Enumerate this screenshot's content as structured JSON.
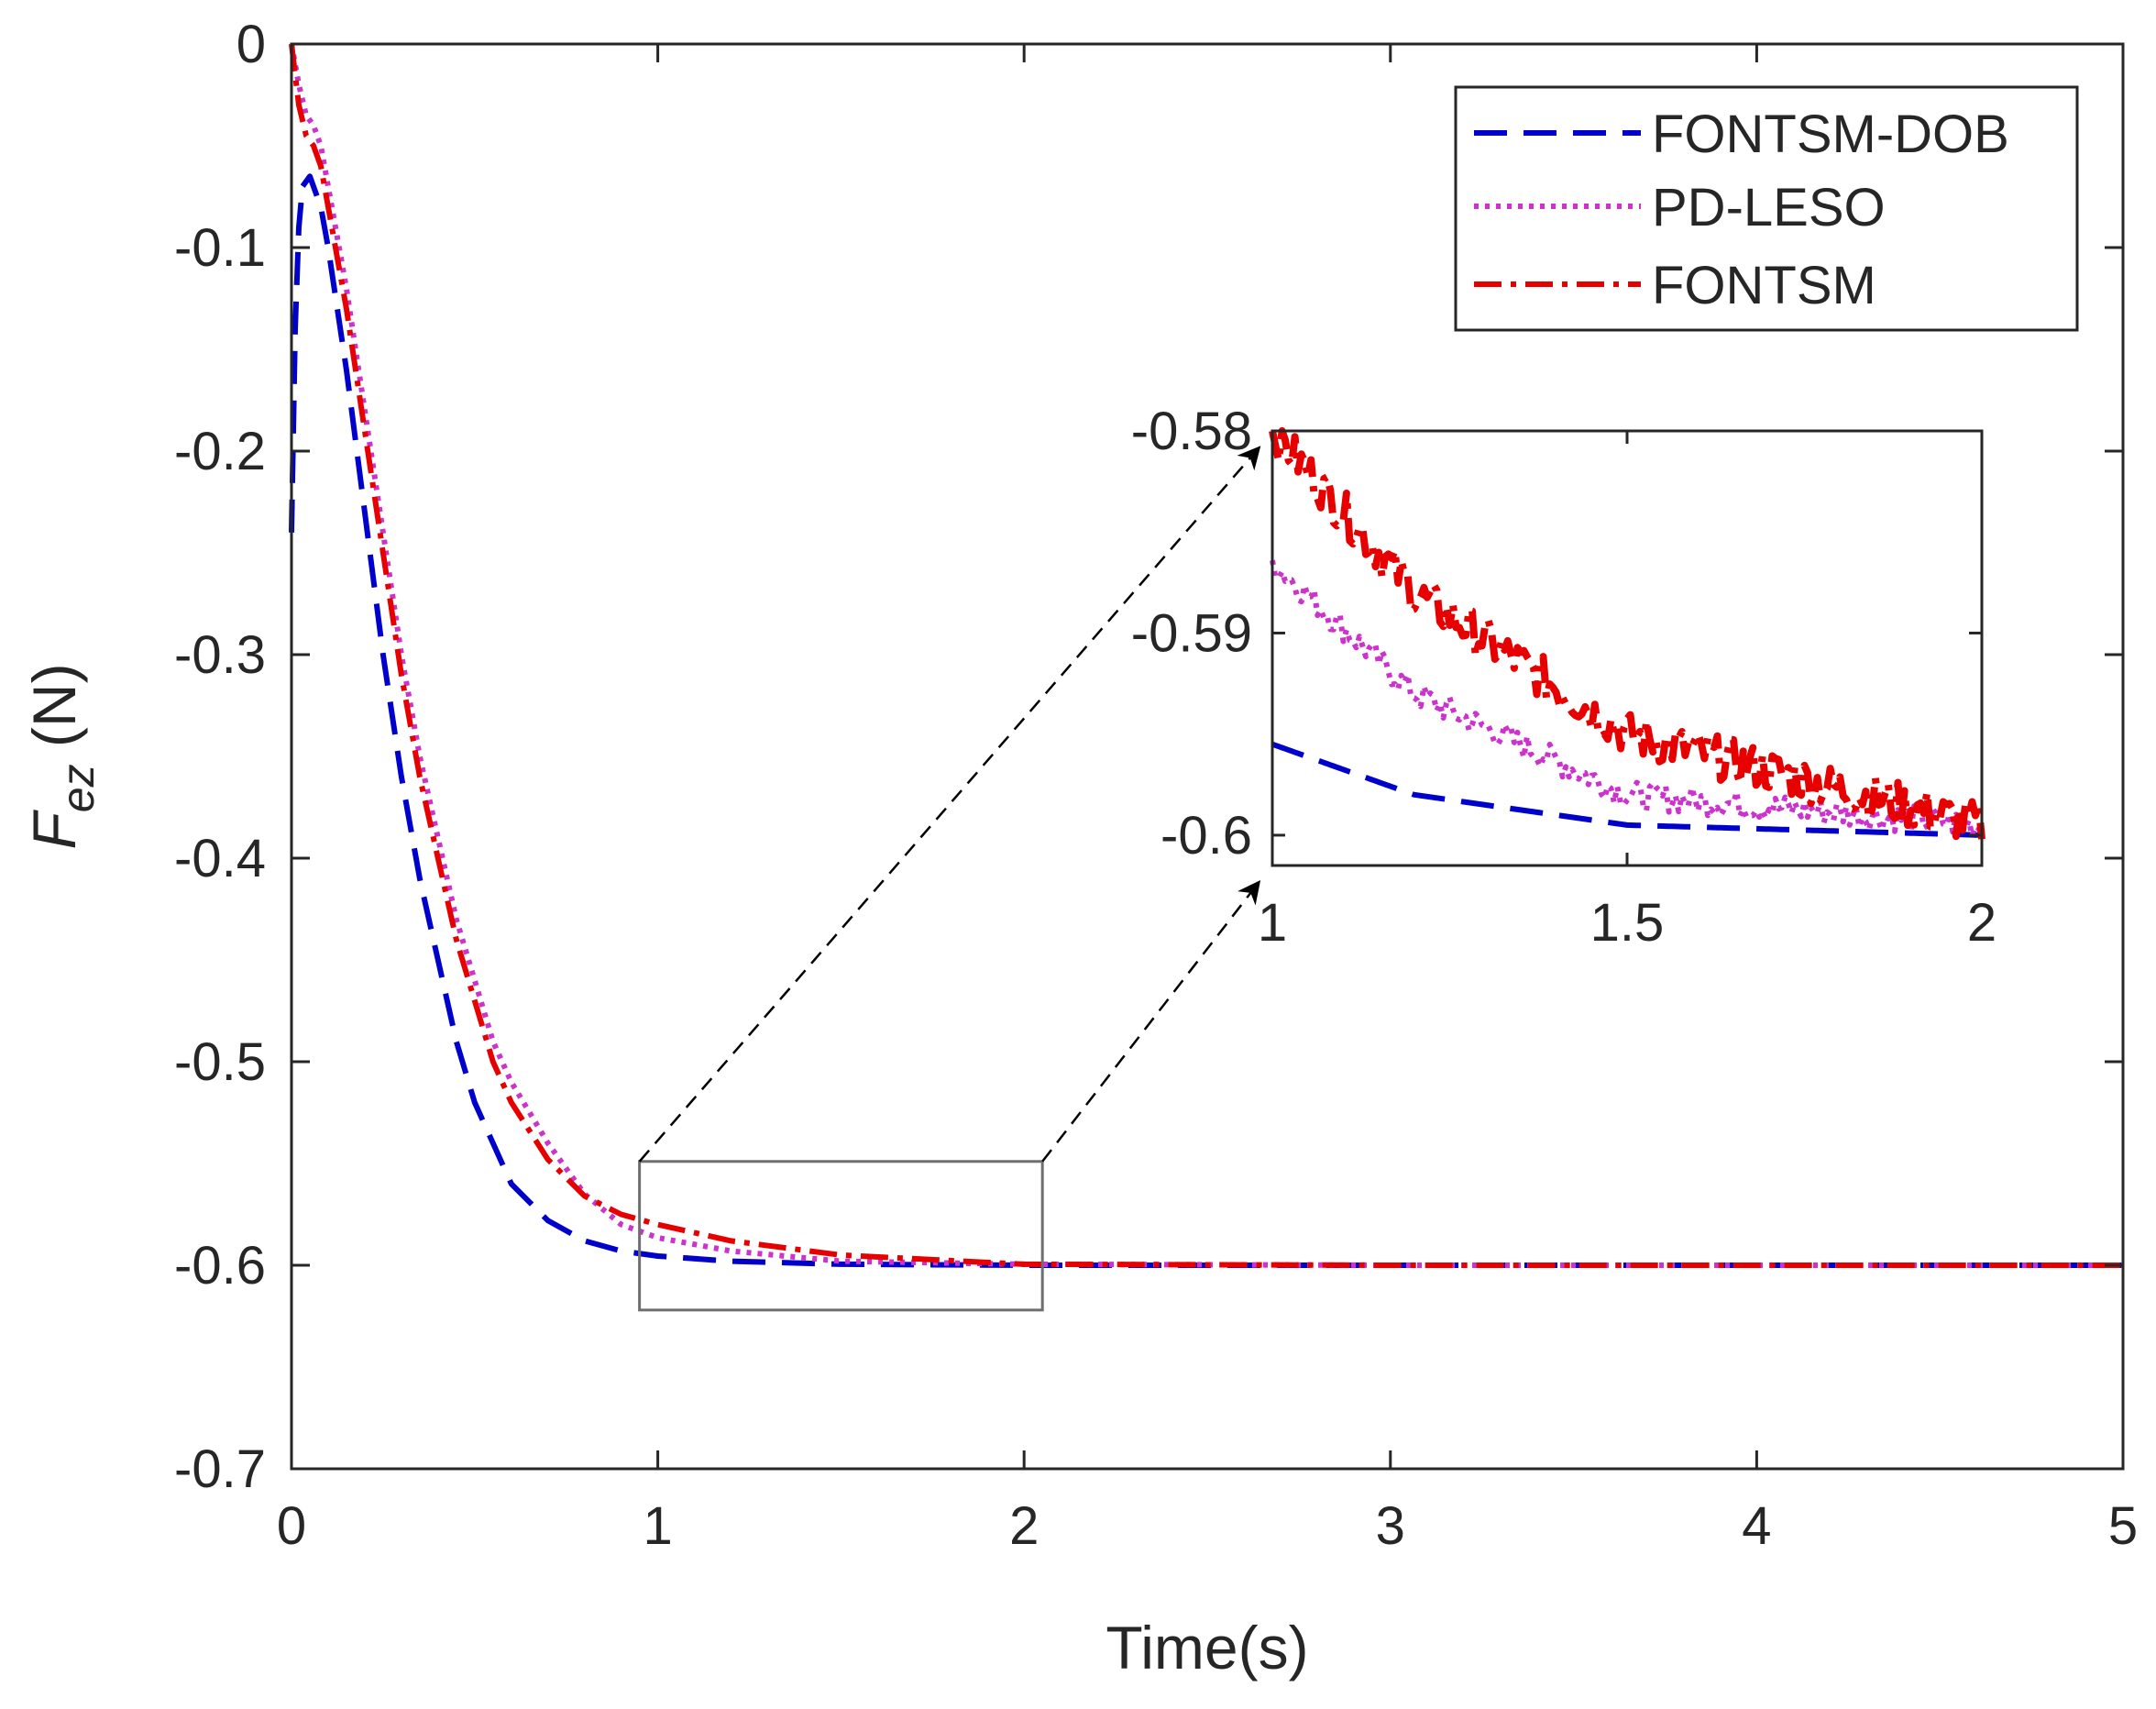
{
  "chart_data": {
    "type": "line",
    "xlabel": "Time(s)",
    "ylabel_main": "F",
    "ylabel_sub": "ez",
    "ylabel_unit": " (N)",
    "xlim": [
      0,
      5
    ],
    "ylim": [
      -0.7,
      0
    ],
    "xticks": [
      "0",
      "1",
      "2",
      "3",
      "4",
      "5"
    ],
    "yticks": [
      "0",
      "-0.1",
      "-0.2",
      "-0.3",
      "-0.4",
      "-0.5",
      "-0.6",
      "-0.7"
    ],
    "grid": false,
    "legend_position": "top-right",
    "series": [
      {
        "name": "FONTSM-DOB",
        "color": "#0000cc",
        "style": "dashed",
        "points": [
          [
            0,
            -0.24
          ],
          [
            0.01,
            -0.14
          ],
          [
            0.02,
            -0.09
          ],
          [
            0.03,
            -0.07
          ],
          [
            0.05,
            -0.065
          ],
          [
            0.08,
            -0.08
          ],
          [
            0.1,
            -0.1
          ],
          [
            0.15,
            -0.16
          ],
          [
            0.2,
            -0.23
          ],
          [
            0.25,
            -0.3
          ],
          [
            0.3,
            -0.36
          ],
          [
            0.35,
            -0.41
          ],
          [
            0.4,
            -0.45
          ],
          [
            0.45,
            -0.49
          ],
          [
            0.5,
            -0.52
          ],
          [
            0.55,
            -0.54
          ],
          [
            0.6,
            -0.56
          ],
          [
            0.7,
            -0.578
          ],
          [
            0.8,
            -0.588
          ],
          [
            0.9,
            -0.593
          ],
          [
            1.0,
            -0.5955
          ],
          [
            1.2,
            -0.598
          ],
          [
            1.5,
            -0.5995
          ],
          [
            2.0,
            -0.6
          ],
          [
            3.0,
            -0.6
          ],
          [
            4.0,
            -0.6
          ],
          [
            5.0,
            -0.6
          ]
        ]
      },
      {
        "name": "PD-LESO",
        "color": "#cc33cc",
        "style": "dotted",
        "points": [
          [
            0,
            0
          ],
          [
            0.02,
            -0.02
          ],
          [
            0.04,
            -0.035
          ],
          [
            0.06,
            -0.04
          ],
          [
            0.08,
            -0.05
          ],
          [
            0.1,
            -0.07
          ],
          [
            0.15,
            -0.12
          ],
          [
            0.2,
            -0.18
          ],
          [
            0.25,
            -0.24
          ],
          [
            0.3,
            -0.3
          ],
          [
            0.35,
            -0.35
          ],
          [
            0.4,
            -0.39
          ],
          [
            0.45,
            -0.43
          ],
          [
            0.5,
            -0.46
          ],
          [
            0.55,
            -0.49
          ],
          [
            0.6,
            -0.51
          ],
          [
            0.7,
            -0.54
          ],
          [
            0.8,
            -0.565
          ],
          [
            0.9,
            -0.58
          ],
          [
            1.0,
            -0.5865
          ],
          [
            1.2,
            -0.593
          ],
          [
            1.5,
            -0.598
          ],
          [
            2.0,
            -0.5995
          ],
          [
            3.0,
            -0.6
          ],
          [
            4.0,
            -0.6
          ],
          [
            5.0,
            -0.6
          ]
        ]
      },
      {
        "name": "FONTSM",
        "color": "#e60000",
        "style": "dash-dot",
        "points": [
          [
            0,
            0
          ],
          [
            0.02,
            -0.03
          ],
          [
            0.04,
            -0.045
          ],
          [
            0.06,
            -0.05
          ],
          [
            0.08,
            -0.06
          ],
          [
            0.1,
            -0.08
          ],
          [
            0.15,
            -0.13
          ],
          [
            0.2,
            -0.19
          ],
          [
            0.25,
            -0.25
          ],
          [
            0.3,
            -0.31
          ],
          [
            0.35,
            -0.36
          ],
          [
            0.4,
            -0.4
          ],
          [
            0.45,
            -0.44
          ],
          [
            0.5,
            -0.47
          ],
          [
            0.55,
            -0.5
          ],
          [
            0.6,
            -0.52
          ],
          [
            0.7,
            -0.548
          ],
          [
            0.8,
            -0.566
          ],
          [
            0.9,
            -0.575
          ],
          [
            1.0,
            -0.58
          ],
          [
            1.2,
            -0.588
          ],
          [
            1.5,
            -0.595
          ],
          [
            2.0,
            -0.5995
          ],
          [
            3.0,
            -0.6
          ],
          [
            4.0,
            -0.6
          ],
          [
            5.0,
            -0.6
          ]
        ]
      }
    ],
    "inset": {
      "xlim": [
        1,
        2
      ],
      "ylim": [
        -0.6015,
        -0.58
      ],
      "xticks": [
        "1",
        "1.5",
        "2"
      ],
      "yticks": [
        "-0.58",
        "-0.59",
        "-0.6"
      ]
    },
    "zoom_region": {
      "xlim": [
        0.95,
        2.05
      ],
      "ylim": [
        -0.622,
        -0.549
      ]
    }
  }
}
